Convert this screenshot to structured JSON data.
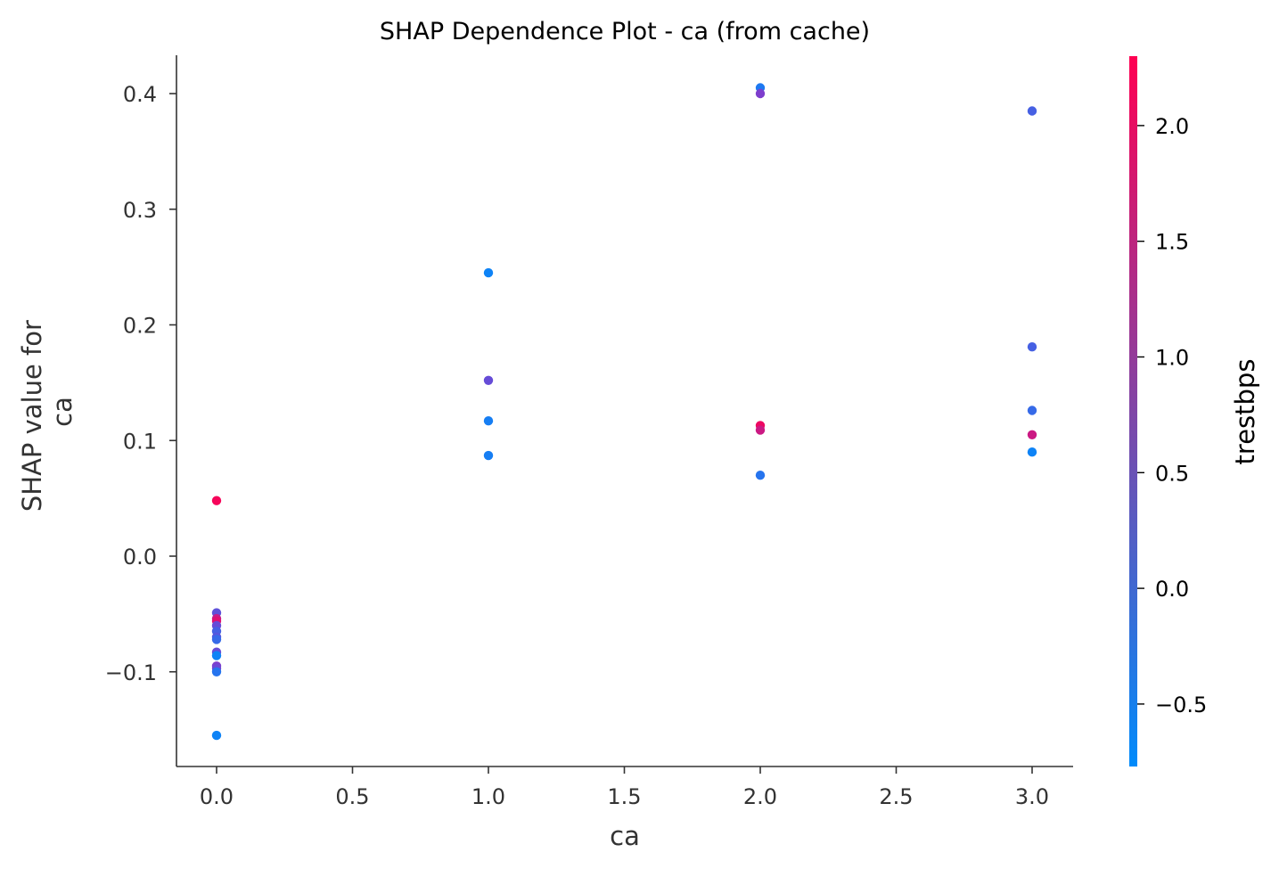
{
  "chart_data": {
    "type": "scatter",
    "title": "SHAP Dependence Plot - ca (from cache)",
    "xlabel": "ca",
    "ylabel_lines": [
      "SHAP value for",
      "ca"
    ],
    "xlim": [
      -0.15,
      3.15
    ],
    "ylim": [
      -0.182,
      0.433
    ],
    "xticks": [
      0.0,
      0.5,
      1.0,
      1.5,
      2.0,
      2.5,
      3.0
    ],
    "xtick_labels": [
      "0.0",
      "0.5",
      "1.0",
      "1.5",
      "2.0",
      "2.5",
      "3.0"
    ],
    "yticks": [
      -0.1,
      0.0,
      0.1,
      0.2,
      0.3,
      0.4
    ],
    "ytick_labels": [
      "−0.1",
      "0.0",
      "0.1",
      "0.2",
      "0.3",
      "0.4"
    ],
    "grid": false,
    "colorbar": {
      "label": "trestbps",
      "range": [
        -0.77,
        2.3
      ],
      "ticks": [
        -0.5,
        0.0,
        0.5,
        1.0,
        1.5,
        2.0
      ],
      "tick_labels": [
        "−0.5",
        "0.0",
        "0.5",
        "1.0",
        "1.5",
        "2.0"
      ],
      "colormap": [
        "#008bfb",
        "#ff0052"
      ]
    },
    "points": [
      {
        "x": 0,
        "y": 0.048,
        "c": 2.2
      },
      {
        "x": 0,
        "y": -0.049,
        "c": 0.4
      },
      {
        "x": 0,
        "y": -0.054,
        "c": 1.6
      },
      {
        "x": 0,
        "y": -0.056,
        "c": 1.9
      },
      {
        "x": 0,
        "y": -0.06,
        "c": 0.5
      },
      {
        "x": 0,
        "y": -0.065,
        "c": 0.1
      },
      {
        "x": 0,
        "y": -0.07,
        "c": 0.3
      },
      {
        "x": 0,
        "y": -0.072,
        "c": -0.1
      },
      {
        "x": 0,
        "y": -0.083,
        "c": 0.5
      },
      {
        "x": 0,
        "y": -0.086,
        "c": -0.6
      },
      {
        "x": 0,
        "y": -0.095,
        "c": 0.8
      },
      {
        "x": 0,
        "y": -0.097,
        "c": 0.6
      },
      {
        "x": 0,
        "y": -0.1,
        "c": -0.3
      },
      {
        "x": 0,
        "y": -0.155,
        "c": -0.6
      },
      {
        "x": 1,
        "y": 0.245,
        "c": -0.6
      },
      {
        "x": 1,
        "y": 0.152,
        "c": 0.5
      },
      {
        "x": 1,
        "y": 0.117,
        "c": -0.5
      },
      {
        "x": 1,
        "y": 0.087,
        "c": -0.5
      },
      {
        "x": 2,
        "y": 0.405,
        "c": -0.4
      },
      {
        "x": 2,
        "y": 0.4,
        "c": 0.8
      },
      {
        "x": 2,
        "y": 0.113,
        "c": 2.1
      },
      {
        "x": 2,
        "y": 0.109,
        "c": 1.7
      },
      {
        "x": 2,
        "y": 0.07,
        "c": -0.3
      },
      {
        "x": 3,
        "y": 0.385,
        "c": 0.1
      },
      {
        "x": 3,
        "y": 0.181,
        "c": 0.1
      },
      {
        "x": 3,
        "y": 0.126,
        "c": -0.1
      },
      {
        "x": 3,
        "y": 0.105,
        "c": 1.7
      },
      {
        "x": 3,
        "y": 0.09,
        "c": -0.6
      }
    ]
  }
}
